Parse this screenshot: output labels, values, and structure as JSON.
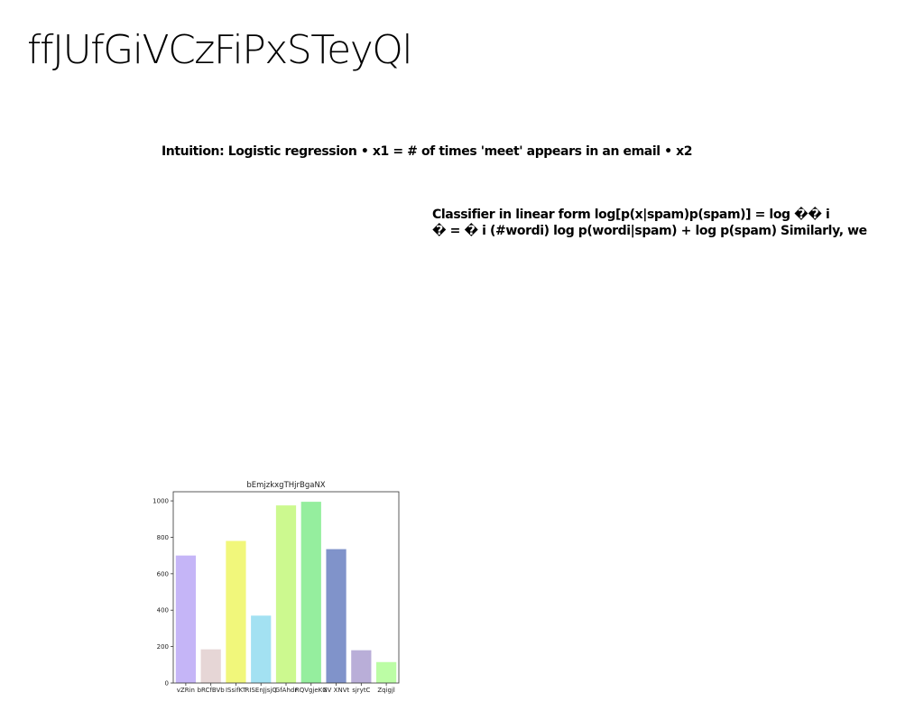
{
  "slide": {
    "title": "ffJUfGiVCzFiPxSTeyQl",
    "bullet1": "Intuition: Logistic regression • x1 = # of times 'meet' appears in an email • x2",
    "bullet2_line1": "Classifier in linear form log[p(x|spam)p(spam)] = log �� i",
    "bullet2_line2": "� = � i (#wordi) log p(wordi|spam) + log p(spam) Similarly, we"
  },
  "chart_data": {
    "type": "bar",
    "title": "bEmjzkxgTHjrBgaNX",
    "xlabel": "",
    "ylabel": "",
    "categories": [
      "vZRin",
      "bRCfBVb",
      "ISsifKT",
      "RISEnJjsjQ",
      "GfAhdr",
      "RQVgjeKG",
      "XV XNVt",
      "sjrytC",
      "Zqigjl"
    ],
    "values": [
      700,
      185,
      780,
      370,
      975,
      995,
      735,
      180,
      115
    ],
    "colors": [
      "#c5b5f7",
      "#e6d6d6",
      "#f1f77b",
      "#a3e1f2",
      "#ccf98f",
      "#95ee9e",
      "#8093ca",
      "#b9aed8",
      "#bcfda5"
    ],
    "ylim": [
      0,
      1050
    ],
    "yticks": [
      0,
      200,
      400,
      600,
      800,
      1000
    ],
    "grid": false
  }
}
